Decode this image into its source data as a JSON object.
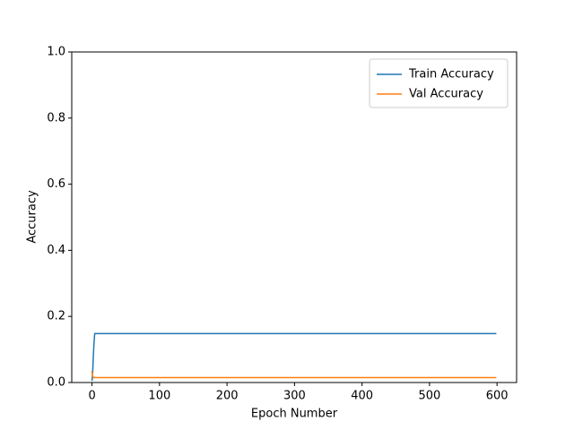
{
  "chart_data": {
    "type": "line",
    "xlabel": "Epoch Number",
    "ylabel": "Accuracy",
    "x": [
      0,
      1,
      2,
      3,
      4,
      5,
      599
    ],
    "series": [
      {
        "name": "Train Accuracy",
        "color": "#1f77b4",
        "values": [
          0.005,
          0.03,
          0.08,
          0.12,
          0.148,
          0.148,
          0.148
        ]
      },
      {
        "name": "Val Accuracy",
        "color": "#ff7f0e",
        "values": [
          0.035,
          0.02,
          0.015,
          0.015,
          0.015,
          0.015,
          0.015
        ]
      }
    ],
    "xlim": [
      -30,
      629
    ],
    "xticks": [
      0,
      100,
      200,
      300,
      400,
      500,
      600
    ],
    "ylim": [
      0,
      1
    ],
    "yticks": [
      {
        "value": 0,
        "label": "0.0"
      },
      {
        "value": 0.2,
        "label": "0.2"
      },
      {
        "value": 0.4,
        "label": "0.4"
      },
      {
        "value": 0.6,
        "label": "0.6"
      },
      {
        "value": 0.8,
        "label": "0.8"
      },
      {
        "value": 1,
        "label": "1.0"
      }
    ],
    "legend": "upper right"
  }
}
